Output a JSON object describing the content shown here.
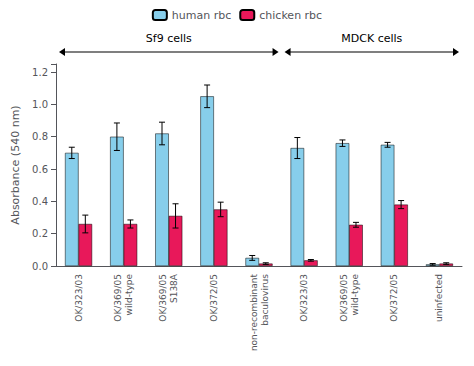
{
  "chart_data": {
    "type": "bar",
    "ylabel": "Absorbance (540 nm)",
    "categories": [
      "OK/323/03",
      "OK/369/05\nwild-type",
      "OK/369/05\nS138A",
      "OK/372/05",
      "non-recombinant\nbaculovirus",
      "OK/323/03",
      "OK/369/05\nwild-type",
      "OK/372/05",
      "uninfected"
    ],
    "series": [
      {
        "name": "human rbc",
        "color": "#87CEEB",
        "values": [
          0.7,
          0.8,
          0.82,
          1.05,
          0.05,
          0.73,
          0.76,
          0.75,
          0.01
        ],
        "errors": [
          0.035,
          0.085,
          0.07,
          0.07,
          0.015,
          0.065,
          0.02,
          0.015,
          0.005
        ]
      },
      {
        "name": "chicken rbc",
        "color": "#E8185A",
        "values": [
          0.26,
          0.26,
          0.31,
          0.35,
          0.015,
          0.035,
          0.255,
          0.38,
          0.015
        ],
        "errors": [
          0.055,
          0.025,
          0.075,
          0.045,
          0.005,
          0.005,
          0.015,
          0.025,
          0.005
        ]
      }
    ],
    "ylim": [
      0,
      1.25
    ],
    "yticks": [
      {
        "value": 0,
        "label": "0.0"
      },
      0.2,
      0.4,
      0.6,
      0.8,
      {
        "value": 1,
        "label": "1.0"
      },
      1.2
    ],
    "legend": "top",
    "grid": false,
    "annotations": [
      {
        "text": "Sf9 cells",
        "count": 5
      },
      {
        "text": "MDCK cells",
        "count": 4
      }
    ]
  }
}
